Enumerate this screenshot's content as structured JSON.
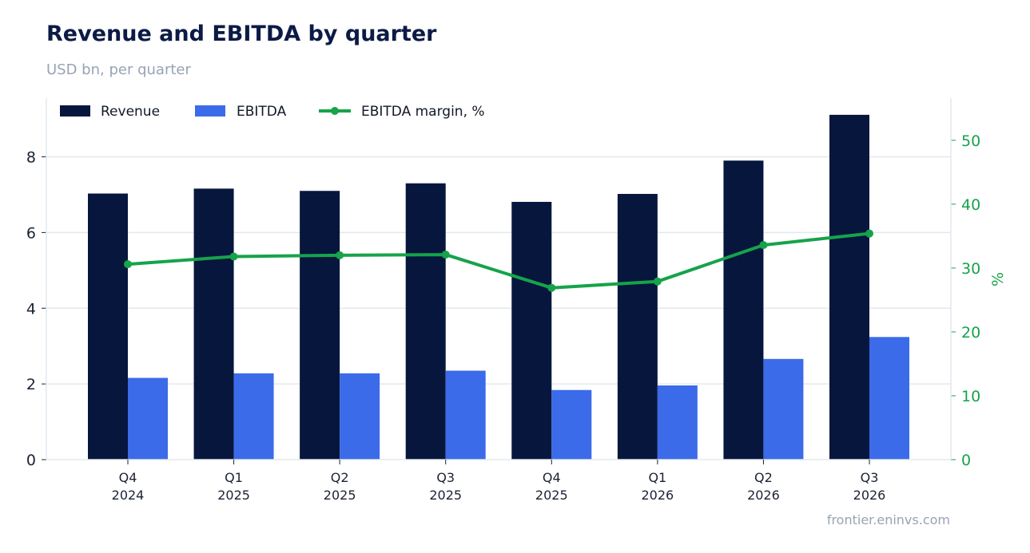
{
  "header": {
    "title": "Revenue and EBITDA by quarter",
    "subtitle": "USD bn, per quarter"
  },
  "footer": {
    "source": "frontier.eninvs.com"
  },
  "colors": {
    "revenue": "#06163d",
    "ebitda": "#3b6be8",
    "margin": "#16a34a",
    "grid": "#e3e8ef"
  },
  "chart_data": {
    "type": "bar",
    "categories": [
      [
        "Q4",
        "2024"
      ],
      [
        "Q1",
        "2025"
      ],
      [
        "Q2",
        "2025"
      ],
      [
        "Q3",
        "2025"
      ],
      [
        "Q4",
        "2025"
      ],
      [
        "Q1",
        "2026"
      ],
      [
        "Q2",
        "2026"
      ],
      [
        "Q3",
        "2026"
      ]
    ],
    "series": [
      {
        "name": "Revenue",
        "kind": "bar",
        "axis": "left",
        "values": [
          7.03,
          7.16,
          7.1,
          7.3,
          6.81,
          7.02,
          7.9,
          9.11
        ]
      },
      {
        "name": "EBITDA",
        "kind": "bar",
        "axis": "left",
        "values": [
          2.16,
          2.28,
          2.28,
          2.35,
          1.84,
          1.96,
          2.66,
          3.24
        ]
      },
      {
        "name": "EBITDA margin, %",
        "kind": "line",
        "axis": "right",
        "values": [
          30.6,
          31.8,
          32.0,
          32.1,
          26.9,
          27.9,
          33.6,
          35.4
        ]
      }
    ],
    "y_left": {
      "ticks": [
        "0",
        "2",
        "4",
        "6",
        "8"
      ],
      "range": [
        0,
        9.55
      ]
    },
    "y_right": {
      "label": "%",
      "ticks": [
        "0",
        "10",
        "20",
        "30",
        "40",
        "50"
      ],
      "range": [
        0,
        56.6
      ]
    },
    "grid": true,
    "legend_position": "top-left"
  }
}
